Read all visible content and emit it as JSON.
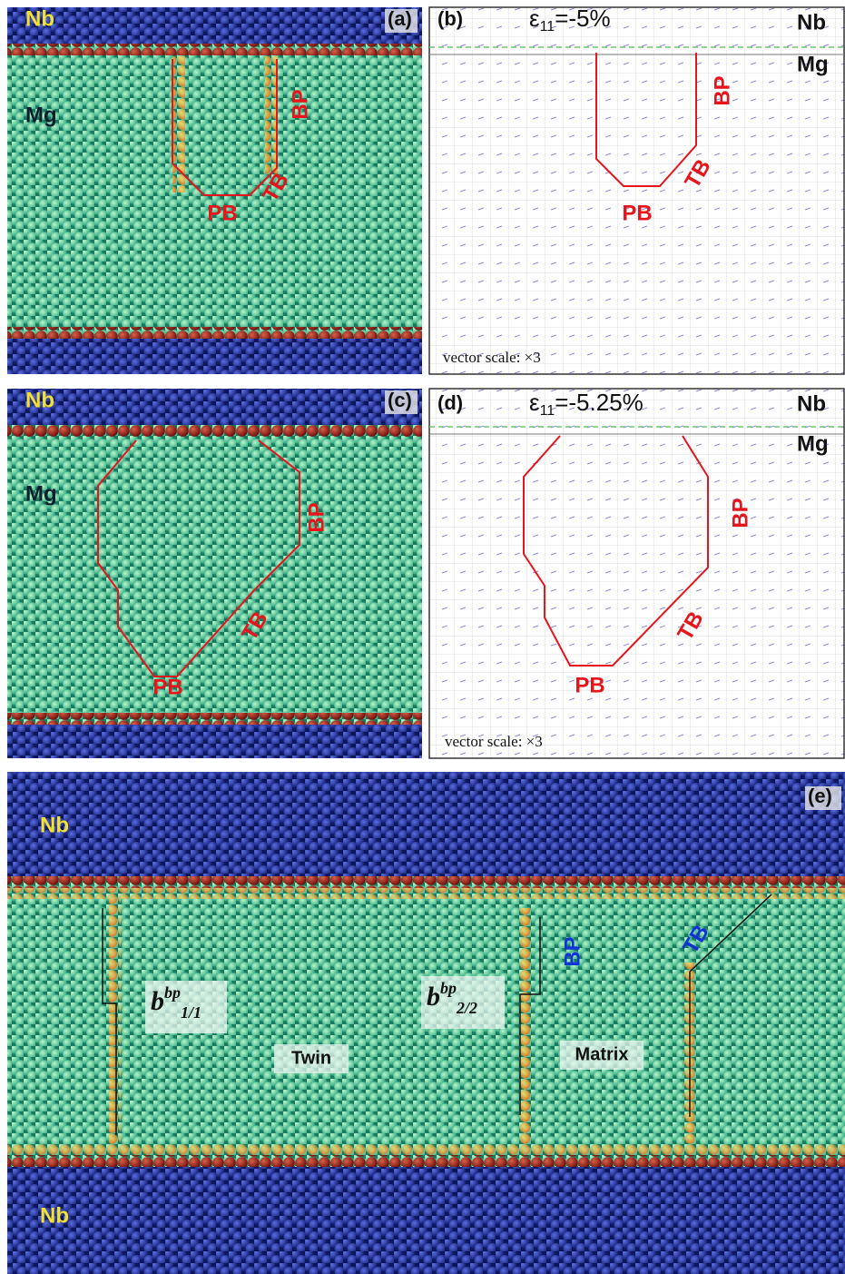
{
  "panels": {
    "a": {
      "label": "(a)",
      "top_layer": "Nb",
      "layer": "Mg",
      "boundaries": [
        "BP",
        "TB",
        "PB"
      ]
    },
    "b": {
      "label": "(b)",
      "strain": {
        "symbol": "ε",
        "subscript": "11",
        "value": "=-5%"
      },
      "top_layer": "Nb",
      "layer": "Mg",
      "boundaries": [
        "BP",
        "TB",
        "PB"
      ],
      "vector_scale": "vector scale: ×3"
    },
    "c": {
      "label": "(c)",
      "top_layer": "Nb",
      "layer": "Mg",
      "boundaries": [
        "BP",
        "TB",
        "PB"
      ]
    },
    "d": {
      "label": "(d)",
      "strain": {
        "symbol": "ε",
        "subscript": "11",
        "value": "=-5.25%"
      },
      "top_layer": "Nb",
      "layer": "Mg",
      "boundaries": [
        "BP",
        "TB",
        "PB"
      ],
      "vector_scale": "vector scale: ×3"
    },
    "e": {
      "label": "(e)",
      "top_layer": "Nb",
      "bottom_layer": "Nb",
      "burgers_1": {
        "base": "b",
        "superscript": "bp",
        "subscript": "1/1"
      },
      "burgers_2": {
        "base": "b",
        "superscript": "bp",
        "subscript": "2/2"
      },
      "twin": "Twin",
      "matrix": "Matrix",
      "boundaries": [
        "BP",
        "TB"
      ]
    }
  }
}
